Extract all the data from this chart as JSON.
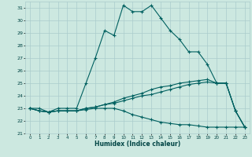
{
  "xlabel": "Humidex (Indice chaleur)",
  "bg_color": "#cce8e0",
  "grid_color": "#aacccc",
  "line_color": "#006060",
  "xlim": [
    -0.5,
    23.5
  ],
  "ylim": [
    21,
    31.5
  ],
  "xticks": [
    0,
    1,
    2,
    3,
    4,
    5,
    6,
    7,
    8,
    9,
    10,
    11,
    12,
    13,
    14,
    15,
    16,
    17,
    18,
    19,
    20,
    21,
    22,
    23
  ],
  "yticks": [
    21,
    22,
    23,
    24,
    25,
    26,
    27,
    28,
    29,
    30,
    31
  ],
  "series": [
    [
      23.0,
      23.0,
      22.7,
      23.0,
      23.0,
      23.0,
      25.0,
      27.0,
      29.2,
      28.8,
      31.2,
      30.7,
      30.7,
      31.2,
      30.2,
      29.2,
      28.5,
      27.5,
      27.5,
      26.5,
      25.0,
      25.0,
      22.8,
      21.5
    ],
    [
      23.0,
      22.8,
      22.7,
      22.8,
      22.8,
      22.8,
      23.0,
      23.1,
      23.3,
      23.5,
      23.8,
      24.0,
      24.2,
      24.5,
      24.7,
      24.8,
      25.0,
      25.1,
      25.2,
      25.3,
      25.0,
      25.0,
      22.8,
      21.5
    ],
    [
      23.0,
      22.8,
      22.7,
      22.8,
      22.8,
      22.8,
      23.0,
      23.1,
      23.3,
      23.4,
      23.6,
      23.8,
      24.0,
      24.1,
      24.3,
      24.5,
      24.7,
      24.9,
      25.0,
      25.1,
      25.0,
      25.0,
      22.8,
      21.5
    ],
    [
      23.0,
      22.8,
      22.7,
      22.8,
      22.8,
      22.8,
      22.9,
      23.0,
      23.0,
      23.0,
      22.8,
      22.5,
      22.3,
      22.1,
      21.9,
      21.8,
      21.7,
      21.7,
      21.6,
      21.5,
      21.5,
      21.5,
      21.5,
      21.5
    ]
  ]
}
